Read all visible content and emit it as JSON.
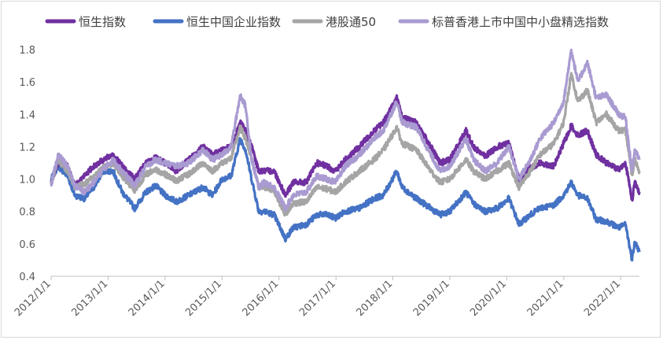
{
  "chart_data": {
    "type": "line",
    "title": "",
    "xlabel": "",
    "ylabel": "",
    "ylim": [
      0.4,
      1.8
    ],
    "yticks": [
      "0.4",
      "0.6",
      "0.8",
      "1.0",
      "1.2",
      "1.4",
      "1.6",
      "1.8"
    ],
    "xlim": [
      "2012/1/1",
      "2022/5/1"
    ],
    "xticks": [
      "2012/1/1",
      "2013/1/1",
      "2014/1/1",
      "2015/1/1",
      "2016/1/1",
      "2017/1/1",
      "2018/1/1",
      "2019/1/1",
      "2020/1/1",
      "2021/1/1",
      "2022/1/1"
    ],
    "grid": false,
    "legend_position": "top",
    "series": [
      {
        "name": "恒生指数",
        "color": "#7030a0",
        "points": [
          [
            "2012/1/1",
            0.98
          ],
          [
            "2012/2/15",
            1.1
          ],
          [
            "2012/4/15",
            1.08
          ],
          [
            "2012/6/1",
            0.96
          ],
          [
            "2012/8/1",
            1.02
          ],
          [
            "2012/10/1",
            1.08
          ],
          [
            "2012/12/1",
            1.12
          ],
          [
            "2013/2/1",
            1.15
          ],
          [
            "2013/4/1",
            1.08
          ],
          [
            "2013/6/20",
            1.0
          ],
          [
            "2013/9/1",
            1.1
          ],
          [
            "2013/11/1",
            1.13
          ],
          [
            "2014/1/1",
            1.1
          ],
          [
            "2014/3/15",
            1.05
          ],
          [
            "2014/6/1",
            1.12
          ],
          [
            "2014/9/1",
            1.2
          ],
          [
            "2014/11/1",
            1.15
          ],
          [
            "2015/1/1",
            1.18
          ],
          [
            "2015/3/1",
            1.2
          ],
          [
            "2015/4/28",
            1.35
          ],
          [
            "2015/6/1",
            1.3
          ],
          [
            "2015/7/10",
            1.2
          ],
          [
            "2015/8/25",
            1.05
          ],
          [
            "2015/10/1",
            1.05
          ],
          [
            "2015/12/1",
            1.05
          ],
          [
            "2016/2/12",
            0.9
          ],
          [
            "2016/4/1",
            0.98
          ],
          [
            "2016/6/24",
            0.98
          ],
          [
            "2016/9/1",
            1.1
          ],
          [
            "2016/11/1",
            1.08
          ],
          [
            "2016/12/30",
            1.05
          ],
          [
            "2017/3/1",
            1.12
          ],
          [
            "2017/6/1",
            1.2
          ],
          [
            "2017/9/1",
            1.3
          ],
          [
            "2017/11/1",
            1.35
          ],
          [
            "2018/1/26",
            1.5
          ],
          [
            "2018/3/1",
            1.38
          ],
          [
            "2018/6/1",
            1.35
          ],
          [
            "2018/9/1",
            1.2
          ],
          [
            "2018/10/30",
            1.1
          ],
          [
            "2019/1/1",
            1.12
          ],
          [
            "2019/4/15",
            1.3
          ],
          [
            "2019/6/1",
            1.2
          ],
          [
            "2019/8/15",
            1.14
          ],
          [
            "2019/11/1",
            1.2
          ],
          [
            "2020/1/15",
            1.22
          ],
          [
            "2020/3/20",
            1.0
          ],
          [
            "2020/6/1",
            1.07
          ],
          [
            "2020/8/1",
            1.1
          ],
          [
            "2020/10/30",
            1.08
          ],
          [
            "2020/12/31",
            1.22
          ],
          [
            "2021/2/18",
            1.33
          ],
          [
            "2021/4/1",
            1.27
          ],
          [
            "2021/6/1",
            1.3
          ],
          [
            "2021/7/28",
            1.15
          ],
          [
            "2021/10/1",
            1.1
          ],
          [
            "2021/12/20",
            1.06
          ],
          [
            "2022/2/1",
            1.1
          ],
          [
            "2022/3/15",
            0.87
          ],
          [
            "2022/4/1",
            0.98
          ],
          [
            "2022/5/1",
            0.92
          ]
        ]
      },
      {
        "name": "恒生中国企业指数",
        "color": "#4472c4",
        "points": [
          [
            "2012/1/1",
            1.0
          ],
          [
            "2012/2/15",
            1.08
          ],
          [
            "2012/4/15",
            1.02
          ],
          [
            "2012/6/1",
            0.9
          ],
          [
            "2012/8/1",
            0.88
          ],
          [
            "2012/10/1",
            0.95
          ],
          [
            "2012/12/1",
            1.05
          ],
          [
            "2013/2/1",
            1.05
          ],
          [
            "2013/4/1",
            0.92
          ],
          [
            "2013/6/20",
            0.82
          ],
          [
            "2013/9/1",
            0.92
          ],
          [
            "2013/11/1",
            0.96
          ],
          [
            "2014/1/1",
            0.9
          ],
          [
            "2014/3/15",
            0.86
          ],
          [
            "2014/6/1",
            0.9
          ],
          [
            "2014/9/1",
            0.95
          ],
          [
            "2014/11/1",
            0.9
          ],
          [
            "2015/1/1",
            1.0
          ],
          [
            "2015/3/1",
            1.02
          ],
          [
            "2015/4/28",
            1.25
          ],
          [
            "2015/6/1",
            1.18
          ],
          [
            "2015/7/10",
            1.0
          ],
          [
            "2015/8/25",
            0.8
          ],
          [
            "2015/10/1",
            0.8
          ],
          [
            "2015/12/1",
            0.78
          ],
          [
            "2016/2/12",
            0.63
          ],
          [
            "2016/4/1",
            0.7
          ],
          [
            "2016/6/24",
            0.72
          ],
          [
            "2016/9/1",
            0.78
          ],
          [
            "2016/11/1",
            0.78
          ],
          [
            "2016/12/30",
            0.76
          ],
          [
            "2017/3/1",
            0.8
          ],
          [
            "2017/6/1",
            0.82
          ],
          [
            "2017/9/1",
            0.88
          ],
          [
            "2017/11/1",
            0.9
          ],
          [
            "2018/1/26",
            1.05
          ],
          [
            "2018/3/1",
            0.95
          ],
          [
            "2018/6/1",
            0.88
          ],
          [
            "2018/9/1",
            0.82
          ],
          [
            "2018/10/30",
            0.78
          ],
          [
            "2019/1/1",
            0.8
          ],
          [
            "2019/4/15",
            0.92
          ],
          [
            "2019/6/1",
            0.85
          ],
          [
            "2019/8/15",
            0.8
          ],
          [
            "2019/11/1",
            0.82
          ],
          [
            "2020/1/15",
            0.88
          ],
          [
            "2020/3/20",
            0.72
          ],
          [
            "2020/6/1",
            0.78
          ],
          [
            "2020/8/1",
            0.82
          ],
          [
            "2020/10/30",
            0.84
          ],
          [
            "2020/12/31",
            0.9
          ],
          [
            "2021/2/18",
            0.98
          ],
          [
            "2021/4/1",
            0.9
          ],
          [
            "2021/6/1",
            0.88
          ],
          [
            "2021/7/28",
            0.75
          ],
          [
            "2021/10/1",
            0.74
          ],
          [
            "2021/12/20",
            0.7
          ],
          [
            "2022/2/1",
            0.72
          ],
          [
            "2022/3/15",
            0.5
          ],
          [
            "2022/4/1",
            0.62
          ],
          [
            "2022/5/1",
            0.55
          ]
        ]
      },
      {
        "name": "港股通50",
        "color": "#a5a5a5",
        "points": [
          [
            "2012/1/1",
            0.97
          ],
          [
            "2012/2/15",
            1.12
          ],
          [
            "2012/4/15",
            1.05
          ],
          [
            "2012/6/1",
            0.95
          ],
          [
            "2012/8/1",
            0.97
          ],
          [
            "2012/10/1",
            1.02
          ],
          [
            "2012/12/1",
            1.07
          ],
          [
            "2013/2/1",
            1.1
          ],
          [
            "2013/4/1",
            1.02
          ],
          [
            "2013/6/20",
            0.93
          ],
          [
            "2013/9/1",
            1.03
          ],
          [
            "2013/11/1",
            1.06
          ],
          [
            "2014/1/1",
            1.03
          ],
          [
            "2014/3/15",
            0.99
          ],
          [
            "2014/6/1",
            1.03
          ],
          [
            "2014/9/1",
            1.1
          ],
          [
            "2014/11/1",
            1.05
          ],
          [
            "2015/1/1",
            1.1
          ],
          [
            "2015/3/1",
            1.13
          ],
          [
            "2015/4/28",
            1.32
          ],
          [
            "2015/6/1",
            1.25
          ],
          [
            "2015/7/10",
            1.12
          ],
          [
            "2015/8/25",
            0.95
          ],
          [
            "2015/10/1",
            0.95
          ],
          [
            "2015/12/1",
            0.93
          ],
          [
            "2016/2/12",
            0.78
          ],
          [
            "2016/4/1",
            0.85
          ],
          [
            "2016/6/24",
            0.86
          ],
          [
            "2016/9/1",
            0.95
          ],
          [
            "2016/11/1",
            0.94
          ],
          [
            "2016/12/30",
            0.92
          ],
          [
            "2017/3/1",
            0.98
          ],
          [
            "2017/6/1",
            1.05
          ],
          [
            "2017/9/1",
            1.12
          ],
          [
            "2017/11/1",
            1.18
          ],
          [
            "2018/1/26",
            1.32
          ],
          [
            "2018/3/1",
            1.22
          ],
          [
            "2018/6/1",
            1.18
          ],
          [
            "2018/9/1",
            1.05
          ],
          [
            "2018/10/30",
            0.98
          ],
          [
            "2019/1/1",
            1.0
          ],
          [
            "2019/4/15",
            1.12
          ],
          [
            "2019/6/1",
            1.05
          ],
          [
            "2019/8/15",
            1.0
          ],
          [
            "2019/11/1",
            1.05
          ],
          [
            "2020/1/15",
            1.1
          ],
          [
            "2020/3/20",
            0.95
          ],
          [
            "2020/6/1",
            1.05
          ],
          [
            "2020/8/1",
            1.15
          ],
          [
            "2020/10/30",
            1.22
          ],
          [
            "2020/12/31",
            1.35
          ],
          [
            "2021/2/18",
            1.65
          ],
          [
            "2021/4/1",
            1.48
          ],
          [
            "2021/6/1",
            1.55
          ],
          [
            "2021/7/28",
            1.35
          ],
          [
            "2021/10/1",
            1.4
          ],
          [
            "2021/12/20",
            1.3
          ],
          [
            "2022/2/1",
            1.3
          ],
          [
            "2022/3/15",
            1.02
          ],
          [
            "2022/4/1",
            1.12
          ],
          [
            "2022/5/1",
            1.05
          ]
        ]
      },
      {
        "name": "标普香港上市中国中小盘精选指数",
        "color": "#a99bd1",
        "points": [
          [
            "2012/1/1",
            0.97
          ],
          [
            "2012/2/15",
            1.15
          ],
          [
            "2012/4/15",
            1.08
          ],
          [
            "2012/6/1",
            0.96
          ],
          [
            "2012/8/1",
            0.92
          ],
          [
            "2012/10/1",
            0.98
          ],
          [
            "2012/12/1",
            1.06
          ],
          [
            "2013/2/1",
            1.12
          ],
          [
            "2013/4/1",
            1.05
          ],
          [
            "2013/6/20",
            0.96
          ],
          [
            "2013/9/1",
            1.08
          ],
          [
            "2013/11/1",
            1.12
          ],
          [
            "2014/1/1",
            1.1
          ],
          [
            "2014/3/15",
            1.08
          ],
          [
            "2014/6/1",
            1.1
          ],
          [
            "2014/9/1",
            1.18
          ],
          [
            "2014/11/1",
            1.12
          ],
          [
            "2015/1/1",
            1.15
          ],
          [
            "2015/3/1",
            1.2
          ],
          [
            "2015/4/28",
            1.52
          ],
          [
            "2015/6/1",
            1.45
          ],
          [
            "2015/7/10",
            1.12
          ],
          [
            "2015/8/25",
            0.95
          ],
          [
            "2015/10/1",
            0.98
          ],
          [
            "2015/12/1",
            0.95
          ],
          [
            "2016/2/12",
            0.82
          ],
          [
            "2016/4/1",
            0.9
          ],
          [
            "2016/6/24",
            0.92
          ],
          [
            "2016/9/1",
            1.02
          ],
          [
            "2016/11/1",
            1.0
          ],
          [
            "2016/12/30",
            0.98
          ],
          [
            "2017/3/1",
            1.08
          ],
          [
            "2017/6/1",
            1.15
          ],
          [
            "2017/9/1",
            1.25
          ],
          [
            "2017/11/1",
            1.3
          ],
          [
            "2018/1/26",
            1.48
          ],
          [
            "2018/3/1",
            1.35
          ],
          [
            "2018/6/1",
            1.32
          ],
          [
            "2018/9/1",
            1.15
          ],
          [
            "2018/10/30",
            1.05
          ],
          [
            "2019/1/1",
            1.08
          ],
          [
            "2019/4/15",
            1.25
          ],
          [
            "2019/6/1",
            1.12
          ],
          [
            "2019/8/15",
            1.05
          ],
          [
            "2019/11/1",
            1.1
          ],
          [
            "2020/1/15",
            1.2
          ],
          [
            "2020/3/20",
            1.0
          ],
          [
            "2020/6/1",
            1.12
          ],
          [
            "2020/8/1",
            1.25
          ],
          [
            "2020/10/30",
            1.35
          ],
          [
            "2020/12/31",
            1.48
          ],
          [
            "2021/2/18",
            1.8
          ],
          [
            "2021/4/1",
            1.6
          ],
          [
            "2021/6/1",
            1.72
          ],
          [
            "2021/7/28",
            1.5
          ],
          [
            "2021/10/1",
            1.52
          ],
          [
            "2021/12/20",
            1.4
          ],
          [
            "2022/2/1",
            1.38
          ],
          [
            "2022/3/15",
            1.05
          ],
          [
            "2022/4/1",
            1.18
          ],
          [
            "2022/5/1",
            1.12
          ]
        ]
      }
    ]
  }
}
